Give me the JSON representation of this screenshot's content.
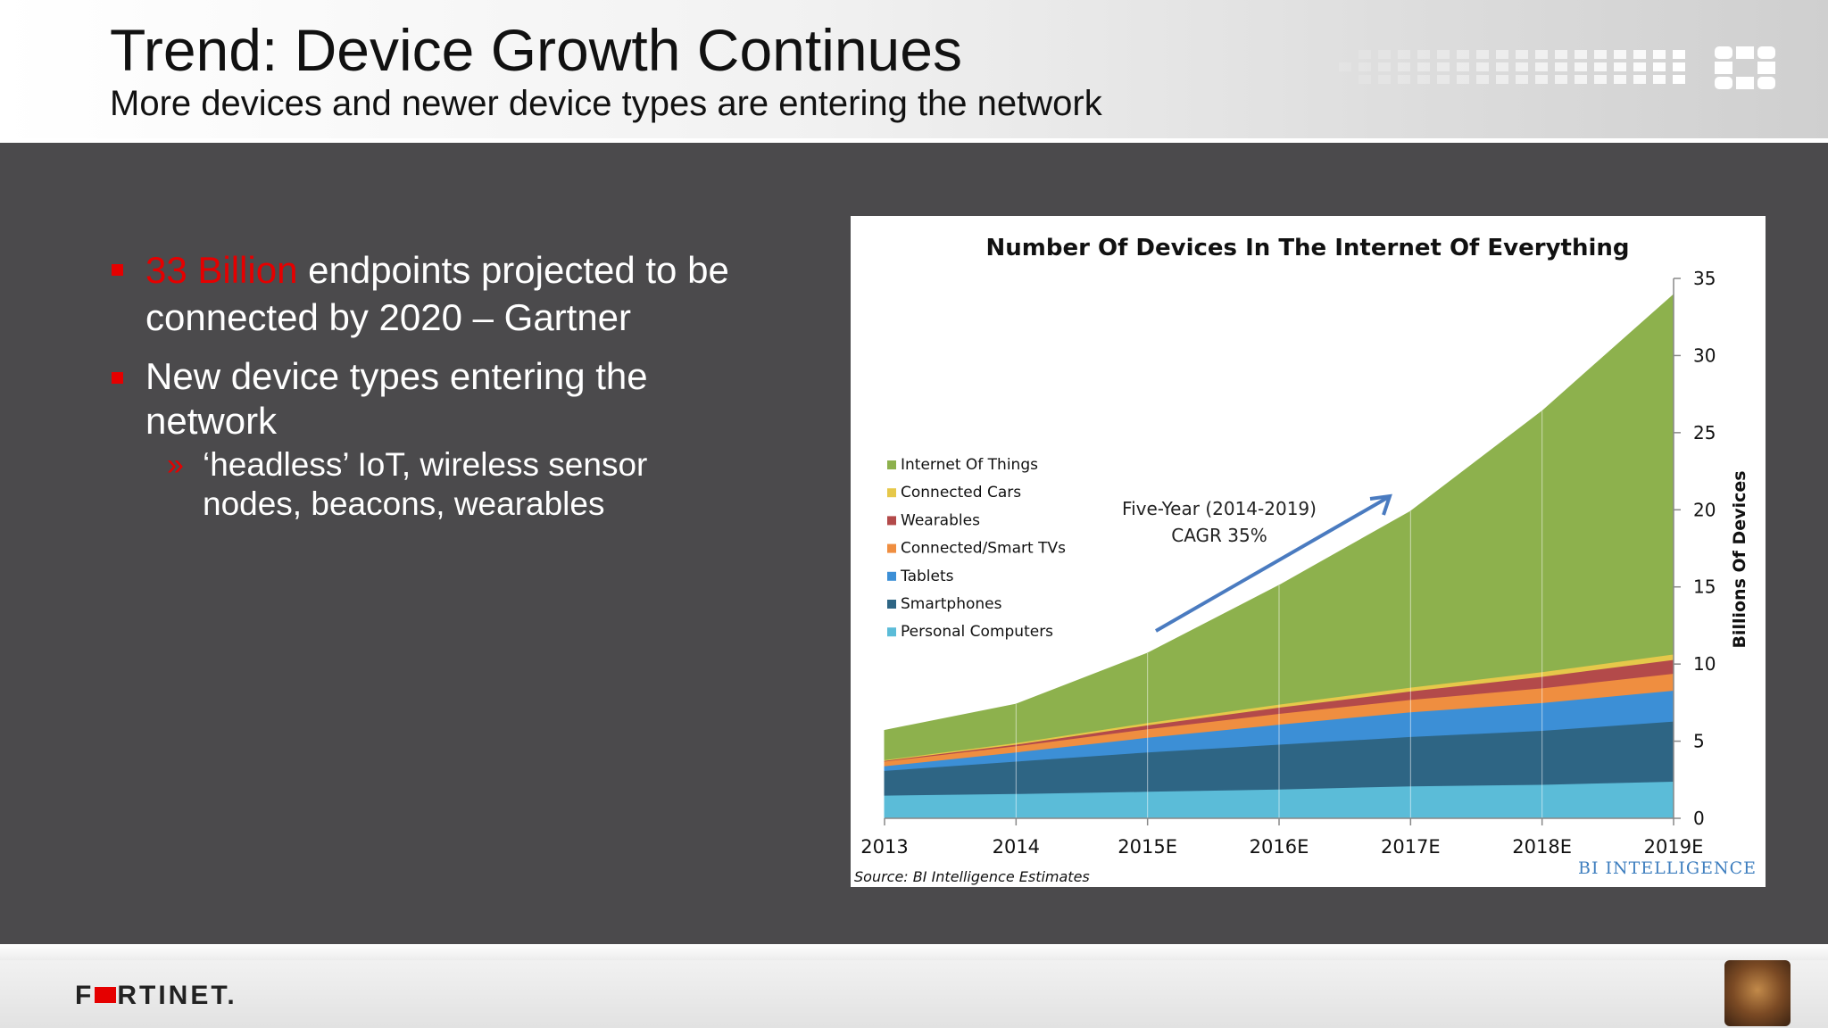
{
  "header": {
    "title": "Trend: Device Growth Continues",
    "subtitle": "More devices and newer device types are entering the network"
  },
  "bullets": {
    "b1_highlight": "33 Billion",
    "b1_rest": "endpoints projected to be connected by 2020 – Gartner",
    "b2": "New device types entering the network",
    "sub1": "‘headless’ IoT, wireless sensor nodes, beacons, wearables"
  },
  "footer": {
    "logo_left": "F",
    "logo_right": "RTINET."
  },
  "colors": {
    "accent_red": "#e50000",
    "background": "#4b4a4c"
  },
  "chart_data": {
    "type": "area",
    "stacked": true,
    "title": "Number Of Devices In The Internet Of Everything",
    "ylabel": "Billions Of Devices",
    "xlabel": "",
    "ylim": [
      0,
      35
    ],
    "yticks": [
      0,
      5,
      10,
      15,
      20,
      25,
      30,
      35
    ],
    "categories": [
      "2013",
      "2014",
      "2015E",
      "2016E",
      "2017E",
      "2018E",
      "2019E"
    ],
    "series": [
      {
        "name": "Personal Computers",
        "color": "#5bbcd8",
        "values": [
          1.5,
          1.6,
          1.75,
          1.9,
          2.1,
          2.2,
          2.4
        ]
      },
      {
        "name": "Smartphones",
        "color": "#2e6584",
        "values": [
          1.6,
          2.1,
          2.55,
          2.9,
          3.2,
          3.5,
          3.9
        ]
      },
      {
        "name": "Tablets",
        "color": "#3c8fd6",
        "values": [
          0.3,
          0.6,
          0.95,
          1.3,
          1.6,
          1.8,
          2.0
        ]
      },
      {
        "name": "Connected/Smart TVs",
        "color": "#ef8e40",
        "values": [
          0.3,
          0.4,
          0.55,
          0.7,
          0.8,
          0.95,
          1.1
        ]
      },
      {
        "name": "Wearables",
        "color": "#b34a4a",
        "values": [
          0.05,
          0.1,
          0.25,
          0.4,
          0.55,
          0.75,
          0.9
        ]
      },
      {
        "name": "Connected Cars",
        "color": "#e6c84a",
        "values": [
          0.05,
          0.1,
          0.15,
          0.2,
          0.25,
          0.3,
          0.35
        ]
      },
      {
        "name": "Internet Of Things",
        "color": "#8db14d",
        "values": [
          1.9,
          2.5,
          4.5,
          7.7,
          11.4,
          16.9,
          23.3
        ]
      }
    ],
    "annotation_line1": "Five-Year (2014-2019)",
    "annotation_line2": "CAGR 35%",
    "source": "Source: BI Intelligence Estimates",
    "brand": "BI INTELLIGENCE"
  }
}
